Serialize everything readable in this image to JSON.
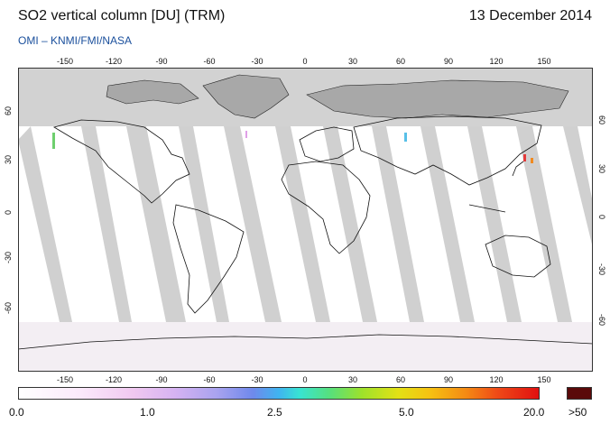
{
  "header": {
    "title": "SO2 vertical column [DU] (TRM)",
    "date": "13 December 2014",
    "credit": "OMI  –  KNMI/FMI/NASA"
  },
  "map": {
    "lon_ticks": [
      "-150",
      "-120",
      "-90",
      "-60",
      "-30",
      "0",
      "30",
      "60",
      "90",
      "120",
      "150"
    ],
    "lat_ticks": [
      "60",
      "30",
      "0",
      "-30",
      "-60"
    ],
    "colors": {
      "land_outline": "#000000",
      "missing_data": "#d0d0d0",
      "no_data_polar": "#bfbfbf",
      "land_missing": "#9a9a9a"
    }
  },
  "colorbar": {
    "labels": [
      "0.0",
      "1.0",
      "2.5",
      "5.0",
      "20.0",
      ">50"
    ],
    "overflow_color": "#5a0a0a"
  }
}
